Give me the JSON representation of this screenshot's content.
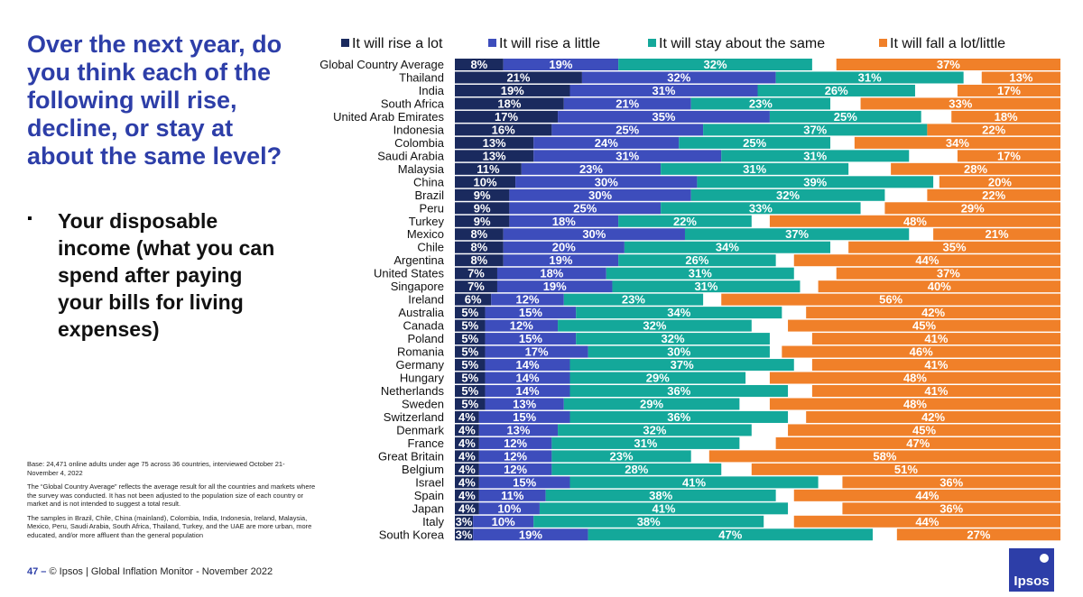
{
  "title": "Over the next year, do you think each of the following will rise, decline, or stay at about the same level?",
  "bullet": "Your disposable income (what you can spend after paying your bills for living expenses)",
  "bullet_mark": "▪",
  "notes": [
    "Base: 24,471 online adults under age 75 across 36 countries, interviewed October 21-November 4, 2022",
    "The “Global Country Average” reflects the average result for all the countries and markets where the survey was conducted. It has not been adjusted to the population size of each country or market and is not intended to suggest a total result.",
    "The samples in Brazil, Chile, China (mainland), Colombia, India, Indonesia, Ireland, Malaysia, Mexico, Peru, Saudi Arabia, South Africa, Thailand, Turkey, and the UAE are more urban, more educated, and/or more affluent than the general population"
  ],
  "footer": {
    "page": "47 –",
    "text": "© Ipsos | Global Inflation Monitor - November 2022"
  },
  "logo_text": "Ipsos",
  "colors": {
    "rise_a_lot": "#1a2a5e",
    "rise_a_little": "#3d4dbc",
    "stay_same": "#14a89a",
    "fall": "#f08029",
    "title": "#2d3ea8"
  },
  "chart_data": {
    "type": "bar",
    "orientation": "horizontal-stacked",
    "legend": [
      "It will rise a lot",
      "It will rise a little",
      "It will stay about the same",
      "It will fall a lot/little"
    ],
    "categories": [
      "Global Country Average",
      "Thailand",
      "India",
      "South Africa",
      "United Arab Emirates",
      "Indonesia",
      "Colombia",
      "Saudi Arabia",
      "Malaysia",
      "China",
      "Brazil",
      "Peru",
      "Turkey",
      "Mexico",
      "Chile",
      "Argentina",
      "United States",
      "Singapore",
      "Ireland",
      "Australia",
      "Canada",
      "Poland",
      "Romania",
      "Germany",
      "Hungary",
      "Netherlands",
      "Sweden",
      "Switzerland",
      "Denmark",
      "France",
      "Great Britain",
      "Belgium",
      "Israel",
      "Spain",
      "Japan",
      "Italy",
      "South Korea"
    ],
    "series": [
      {
        "name": "It will rise a lot",
        "values": [
          8,
          21,
          19,
          18,
          17,
          16,
          13,
          13,
          11,
          10,
          9,
          9,
          9,
          8,
          8,
          8,
          7,
          7,
          6,
          5,
          5,
          5,
          5,
          5,
          5,
          5,
          5,
          4,
          4,
          4,
          4,
          4,
          4,
          4,
          4,
          3,
          3
        ]
      },
      {
        "name": "It will rise a little",
        "values": [
          19,
          32,
          31,
          21,
          35,
          25,
          24,
          31,
          23,
          30,
          30,
          25,
          18,
          30,
          20,
          19,
          18,
          19,
          12,
          15,
          12,
          15,
          17,
          14,
          14,
          14,
          13,
          15,
          13,
          12,
          12,
          12,
          15,
          11,
          10,
          10,
          19
        ]
      },
      {
        "name": "It will stay about the same",
        "values": [
          32,
          31,
          26,
          23,
          25,
          37,
          25,
          31,
          31,
          39,
          32,
          33,
          22,
          37,
          34,
          26,
          31,
          31,
          23,
          34,
          32,
          32,
          30,
          37,
          29,
          36,
          29,
          36,
          32,
          31,
          23,
          28,
          41,
          38,
          41,
          38,
          47
        ]
      },
      {
        "name": "It will fall a lot/little",
        "values": [
          37,
          13,
          17,
          33,
          18,
          22,
          34,
          17,
          28,
          20,
          22,
          29,
          48,
          21,
          35,
          44,
          37,
          40,
          56,
          42,
          45,
          41,
          46,
          41,
          48,
          41,
          48,
          42,
          45,
          47,
          58,
          51,
          36,
          44,
          36,
          44,
          27
        ]
      }
    ],
    "unit": "%"
  }
}
